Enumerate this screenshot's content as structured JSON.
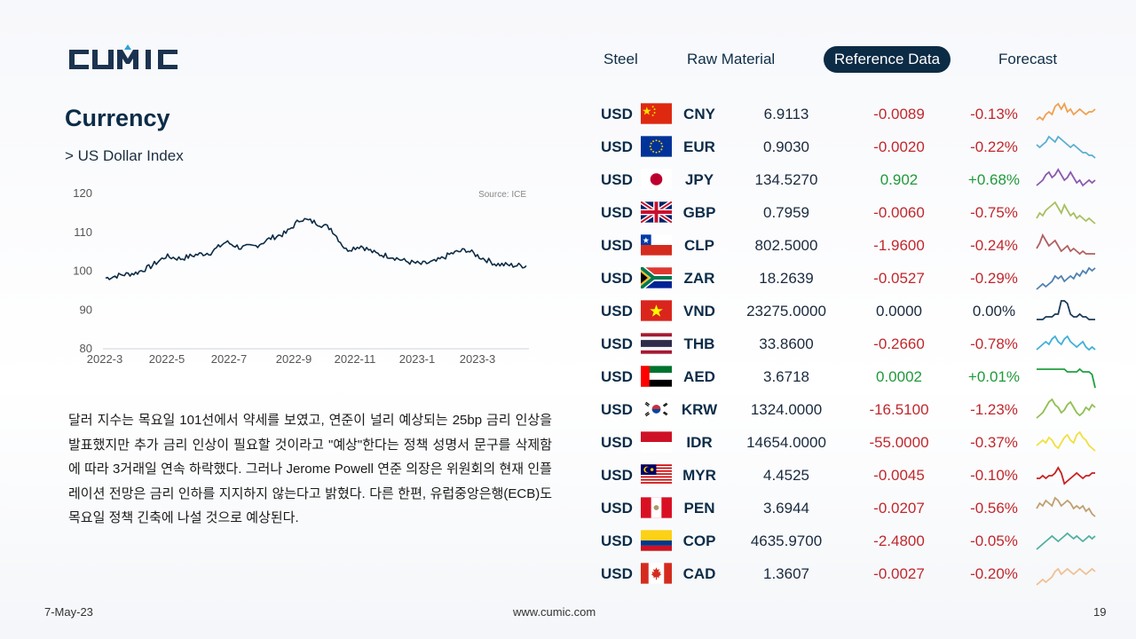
{
  "logo": {
    "text": "CUMIC"
  },
  "nav": [
    {
      "label": "Steel",
      "active": false
    },
    {
      "label": "Raw Material",
      "active": false
    },
    {
      "label": "Reference Data",
      "active": true
    },
    {
      "label": "Forecast",
      "active": false
    }
  ],
  "page": {
    "title": "Currency",
    "subtitle": "> US Dollar Index",
    "paragraph": "달러 지수는 목요일 101선에서 약세를 보였고, 연준이 널리 예상되는 25bp 금리 인상을 발표했지만 추가 금리 인상이 필요할 것이라고 \"예상\"한다는 정책 성명서 문구를 삭제함에 따라 3거래일 연속 하락했다. 그러나 Jerome Powell 연준 의장은 위원회의 현재 인플레이션 전망은 금리 인하를 지지하지 않는다고 밝혔다. 다른 한편, 유럽중앙은행(ECB)도 목요일 정책 긴축에 나설 것으로 예상된다."
  },
  "chart_data": {
    "type": "line",
    "title": "",
    "source": "Source: ICE",
    "xlabel": "",
    "ylabel": "",
    "x_ticks": [
      "2022-3",
      "2022-5",
      "2022-7",
      "2022-9",
      "2022-11",
      "2023-1",
      "2023-3"
    ],
    "y_ticks": [
      80,
      90,
      100,
      110,
      120
    ],
    "ylim": [
      80,
      120
    ],
    "x": [
      "2022-03",
      "2022-03",
      "2022-04",
      "2022-04",
      "2022-05",
      "2022-05",
      "2022-06",
      "2022-06",
      "2022-07",
      "2022-07",
      "2022-08",
      "2022-08",
      "2022-09",
      "2022-09",
      "2022-10",
      "2022-10",
      "2022-11",
      "2022-11",
      "2022-12",
      "2022-12",
      "2023-01",
      "2023-01",
      "2023-02",
      "2023-02",
      "2023-03",
      "2023-03",
      "2023-04",
      "2023-04",
      "2023-05"
    ],
    "series": [
      {
        "values": [
          98.2,
          99.0,
          99.5,
          101.2,
          103.8,
          103.2,
          104.2,
          104.8,
          107.5,
          106.0,
          106.5,
          108.5,
          109.8,
          113.5,
          112.5,
          111.0,
          105.5,
          106.5,
          104.5,
          103.8,
          102.5,
          101.8,
          102.5,
          104.5,
          105.5,
          103.5,
          101.8,
          101.5,
          101.4
        ]
      }
    ],
    "grid": false,
    "color": "#0c2b45"
  },
  "currencies": [
    {
      "base": "USD",
      "code": "CNY",
      "rate": "6.9113",
      "change": "-0.0089",
      "pct": "-0.13%",
      "dir": "neg",
      "spark_color": "#f0a050",
      "spark": [
        3,
        4,
        3,
        5,
        6,
        5,
        8,
        9,
        7,
        9,
        6,
        7,
        5,
        6,
        7,
        6,
        5,
        6,
        6,
        7
      ]
    },
    {
      "base": "USD",
      "code": "EUR",
      "rate": "0.9030",
      "change": "-0.0020",
      "pct": "-0.22%",
      "dir": "neg",
      "spark_color": "#5aaed0",
      "spark": [
        6,
        5,
        6,
        7,
        9,
        8,
        7,
        9,
        8,
        7,
        6,
        5,
        6,
        5,
        4,
        3,
        3,
        2,
        2,
        1
      ]
    },
    {
      "base": "USD",
      "code": "JPY",
      "rate": "134.5270",
      "change": "0.902",
      "pct": "+0.68%",
      "dir": "pos",
      "spark_color": "#8a5ab0",
      "spark": [
        3,
        4,
        5,
        7,
        8,
        6,
        7,
        9,
        7,
        5,
        6,
        8,
        6,
        4,
        5,
        3,
        4,
        5,
        4,
        5
      ]
    },
    {
      "base": "USD",
      "code": "GBP",
      "rate": "0.7959",
      "change": "-0.0060",
      "pct": "-0.75%",
      "dir": "neg",
      "spark_color": "#a8c060",
      "spark": [
        3,
        5,
        4,
        6,
        7,
        8,
        9,
        7,
        5,
        8,
        6,
        4,
        5,
        3,
        4,
        3,
        2,
        3,
        2,
        1
      ]
    },
    {
      "base": "USD",
      "code": "CLP",
      "rate": "802.5000",
      "change": "-1.9600",
      "pct": "-0.24%",
      "dir": "neg",
      "spark_color": "#b06060",
      "spark": [
        4,
        6,
        9,
        7,
        5,
        6,
        7,
        5,
        3,
        4,
        5,
        3,
        4,
        3,
        2,
        3,
        2,
        2,
        2,
        2
      ]
    },
    {
      "base": "USD",
      "code": "ZAR",
      "rate": "18.2639",
      "change": "-0.0527",
      "pct": "-0.29%",
      "dir": "neg",
      "spark_color": "#5080b0",
      "spark": [
        1,
        2,
        3,
        2,
        3,
        4,
        6,
        5,
        6,
        4,
        5,
        6,
        5,
        7,
        6,
        8,
        7,
        9,
        8,
        9
      ]
    },
    {
      "base": "USD",
      "code": "VND",
      "rate": "23275.0000",
      "change": "0.0000",
      "pct": "0.00%",
      "dir": "flat",
      "spark_color": "#1c3a58",
      "spark": [
        2,
        2,
        2,
        3,
        3,
        3,
        4,
        4,
        9,
        9,
        8,
        4,
        3,
        3,
        4,
        3,
        3,
        2,
        2,
        2
      ]
    },
    {
      "base": "USD",
      "code": "THB",
      "rate": "33.8600",
      "change": "-0.2660",
      "pct": "-0.78%",
      "dir": "neg",
      "spark_color": "#40b0d8",
      "spark": [
        3,
        4,
        5,
        6,
        5,
        7,
        8,
        6,
        5,
        7,
        8,
        6,
        5,
        4,
        5,
        6,
        4,
        3,
        4,
        3
      ]
    },
    {
      "base": "USD",
      "code": "AED",
      "rate": "3.6718",
      "change": "0.0002",
      "pct": "+0.01%",
      "dir": "pos",
      "spark_color": "#20a040",
      "spark": [
        8,
        8,
        8,
        8,
        8,
        8,
        8,
        8,
        8,
        8,
        7,
        7,
        7,
        7,
        8,
        7,
        7,
        7,
        6,
        1
      ]
    },
    {
      "base": "USD",
      "code": "KRW",
      "rate": "1324.0000",
      "change": "-16.5100",
      "pct": "-1.23%",
      "dir": "neg",
      "spark_color": "#90c050",
      "spark": [
        2,
        3,
        4,
        6,
        8,
        9,
        7,
        6,
        4,
        5,
        7,
        8,
        6,
        4,
        3,
        4,
        6,
        5,
        7,
        6
      ]
    },
    {
      "base": "USD",
      "code": "IDR",
      "rate": "14654.0000",
      "change": "-55.0000",
      "pct": "-0.37%",
      "dir": "neg",
      "spark_color": "#f0e040",
      "spark": [
        4,
        5,
        6,
        5,
        7,
        6,
        4,
        3,
        5,
        7,
        8,
        6,
        5,
        8,
        9,
        7,
        6,
        4,
        3,
        2
      ]
    },
    {
      "base": "USD",
      "code": "MYR",
      "rate": "4.4525",
      "change": "-0.0045",
      "pct": "-0.10%",
      "dir": "neg",
      "spark_color": "#c82020",
      "spark": [
        4,
        4,
        5,
        4,
        5,
        5,
        6,
        8,
        6,
        2,
        3,
        4,
        5,
        6,
        5,
        4,
        5,
        5,
        6,
        6
      ]
    },
    {
      "base": "USD",
      "code": "PEN",
      "rate": "3.6944",
      "change": "-0.0207",
      "pct": "-0.56%",
      "dir": "neg",
      "spark_color": "#c0a070",
      "spark": [
        5,
        7,
        6,
        8,
        7,
        6,
        9,
        8,
        6,
        7,
        8,
        7,
        5,
        6,
        5,
        6,
        4,
        5,
        3,
        2
      ]
    },
    {
      "base": "USD",
      "code": "COP",
      "rate": "4635.9700",
      "change": "-2.4800",
      "pct": "-0.05%",
      "dir": "neg",
      "spark_color": "#50b0a0",
      "spark": [
        2,
        3,
        4,
        5,
        6,
        7,
        6,
        5,
        6,
        7,
        8,
        7,
        6,
        7,
        6,
        5,
        6,
        7,
        6,
        7
      ]
    },
    {
      "base": "USD",
      "code": "CAD",
      "rate": "1.3607",
      "change": "-0.0027",
      "pct": "-0.20%",
      "dir": "neg",
      "spark_color": "#f0c090",
      "spark": [
        1,
        2,
        3,
        2,
        3,
        4,
        6,
        7,
        5,
        6,
        7,
        6,
        5,
        6,
        7,
        6,
        5,
        6,
        7,
        6
      ]
    }
  ],
  "footer": {
    "date": "7-May-23",
    "url": "www.cumic.com",
    "page_number": "19"
  }
}
